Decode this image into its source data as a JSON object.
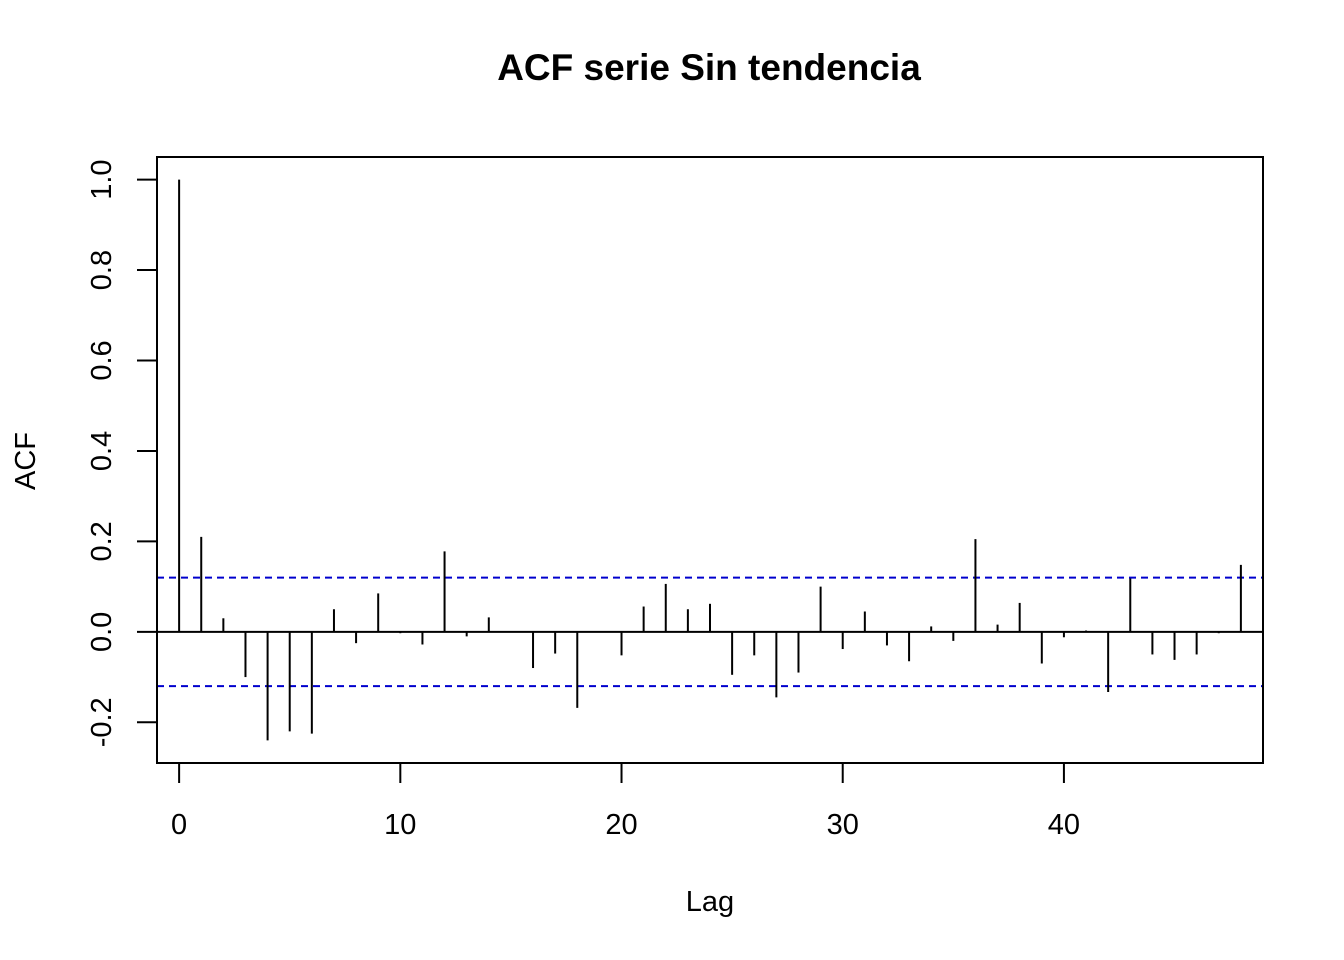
{
  "chart_data": {
    "type": "bar",
    "subtype": "acf-stem",
    "title": "ACF serie Sin tendencia",
    "xlabel": "Lag",
    "ylabel": "ACF",
    "x_ticks": [
      "0",
      "10",
      "20",
      "30",
      "40"
    ],
    "y_ticks": [
      "-0.2",
      "0.0",
      "0.2",
      "0.4",
      "0.6",
      "0.8",
      "1.0"
    ],
    "xlim": [
      -1,
      49
    ],
    "ylim": [
      -0.29,
      1.05
    ],
    "grid": false,
    "lags": [
      0,
      1,
      2,
      3,
      4,
      5,
      6,
      7,
      8,
      9,
      10,
      11,
      12,
      13,
      14,
      15,
      16,
      17,
      18,
      19,
      20,
      21,
      22,
      23,
      24,
      25,
      26,
      27,
      28,
      29,
      30,
      31,
      32,
      33,
      34,
      35,
      36,
      37,
      38,
      39,
      40,
      41,
      42,
      43,
      44,
      45,
      46,
      47,
      48
    ],
    "values": [
      1.0,
      0.21,
      0.03,
      -0.1,
      -0.24,
      -0.22,
      -0.225,
      0.05,
      -0.025,
      0.085,
      -0.003,
      -0.028,
      0.178,
      -0.01,
      0.032,
      0.0,
      -0.08,
      -0.048,
      -0.168,
      0.0,
      -0.052,
      0.056,
      0.106,
      0.05,
      0.062,
      -0.095,
      -0.052,
      -0.145,
      -0.09,
      0.1,
      -0.038,
      0.045,
      -0.03,
      -0.065,
      0.012,
      -0.02,
      0.205,
      0.016,
      0.064,
      -0.07,
      -0.012,
      0.003,
      -0.133,
      0.118,
      -0.05,
      -0.062,
      -0.05,
      -0.003,
      0.148
    ],
    "confidence_bound": 0.12,
    "colors": {
      "bars": "#000000",
      "bounds": "#0000CD",
      "zero_line": "#000000"
    }
  }
}
